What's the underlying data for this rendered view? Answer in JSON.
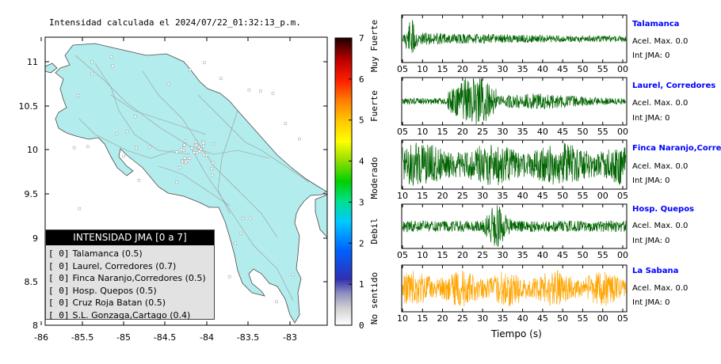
{
  "map": {
    "title": "Intensidad calculada el 2024/07/22_01:32:13_p.m.",
    "lon_ticks": [
      "-86",
      "-85.5",
      "-85",
      "-84.5",
      "-84",
      "-83.5",
      "-83"
    ],
    "lat_ticks": [
      "11",
      "10.5",
      "10",
      "9.5",
      "9",
      "8.5",
      "8"
    ],
    "land_color": "#b3ecec",
    "legend": {
      "title": "INTENSIDAD JMA [0 a 7]",
      "rows": [
        {
          "idx": "[ 0]",
          "label": "Talamanca (0.5)"
        },
        {
          "idx": "[ 0]",
          "label": "Laurel, Corredores (0.7)"
        },
        {
          "idx": "[ 0]",
          "label": "Finca Naranjo,Corredores (0.5)"
        },
        {
          "idx": "[ 0]",
          "label": "Hosp. Quepos (0.5)"
        },
        {
          "idx": "[ 0]",
          "label": "Cruz Roja Batan (0.5)"
        },
        {
          "idx": "[ 0]",
          "label": "S.L. Gonzaga,Cartago (0.4)"
        }
      ]
    }
  },
  "colorbar": {
    "ticks": [
      "7",
      "6",
      "5",
      "4",
      "3",
      "2",
      "1",
      "0"
    ],
    "labels": [
      "Muy Fuerte",
      "Fuerte",
      "Moderado",
      "Debil",
      "No sentido"
    ]
  },
  "traces": [
    {
      "name": "Talamanca",
      "acel": "Acel. Max. 0.0",
      "jma": "Int JMA: 0",
      "color": "#006400",
      "ticks": [
        "05",
        "10",
        "15",
        "20",
        "25",
        "30",
        "35",
        "40",
        "45",
        "50",
        "55",
        "00"
      ]
    },
    {
      "name": "Laurel, Corredores",
      "acel": "Acel. Max. 0.0",
      "jma": "Int JMA: 0",
      "color": "#006400",
      "ticks": [
        "05",
        "10",
        "15",
        "20",
        "25",
        "30",
        "35",
        "40",
        "45",
        "50",
        "55",
        "00"
      ]
    },
    {
      "name": "Finca Naranjo,Corredores",
      "acel": "Acel. Max. 0.0",
      "jma": "Int JMA: 0",
      "color": "#006400",
      "ticks": [
        "10",
        "15",
        "20",
        "25",
        "30",
        "35",
        "40",
        "45",
        "50",
        "55",
        "00",
        "05"
      ]
    },
    {
      "name": "Hosp. Quepos",
      "acel": "Acel. Max. 0.0",
      "jma": "Int JMA: 0",
      "color": "#006400",
      "ticks": [
        "05",
        "10",
        "15",
        "20",
        "25",
        "30",
        "35",
        "40",
        "45",
        "50",
        "55",
        "00"
      ]
    },
    {
      "name": "La Sabana",
      "acel": "Acel. Max. 0.0",
      "jma": "Int JMA: 0",
      "color": "#ffa500",
      "ticks": [
        "10",
        "15",
        "20",
        "25",
        "30",
        "35",
        "40",
        "45",
        "50",
        "55",
        "00",
        "05"
      ]
    }
  ],
  "xaxis_title": "Tiempo (s)",
  "chart_data": [
    {
      "type": "scatter",
      "title": "Intensidad calculada el 2024/07/22_01:32:13_p.m.",
      "xlabel": "",
      "ylabel": "",
      "xlim": [
        -86,
        -82.6
      ],
      "ylim": [
        8,
        11.3
      ],
      "series": [
        {
          "name": "Talamanca",
          "value": 0.5
        },
        {
          "name": "Laurel, Corredores",
          "value": 0.7
        },
        {
          "name": "Finca Naranjo,Corredores",
          "value": 0.5
        },
        {
          "name": "Hosp. Quepos",
          "value": 0.5
        },
        {
          "name": "Cruz Roja Batan",
          "value": 0.5
        },
        {
          "name": "S.L. Gonzaga,Cartago",
          "value": 0.4
        }
      ]
    },
    {
      "type": "line",
      "xlabel": "Tiempo (s)",
      "series": [
        {
          "name": "Talamanca",
          "acel_max": 0.0,
          "int_jma": 0
        },
        {
          "name": "Laurel, Corredores",
          "acel_max": 0.0,
          "int_jma": 0
        },
        {
          "name": "Finca Naranjo,Corredores",
          "acel_max": 0.0,
          "int_jma": 0
        },
        {
          "name": "Hosp. Quepos",
          "acel_max": 0.0,
          "int_jma": 0
        },
        {
          "name": "La Sabana",
          "acel_max": 0.0,
          "int_jma": 0
        }
      ]
    }
  ]
}
